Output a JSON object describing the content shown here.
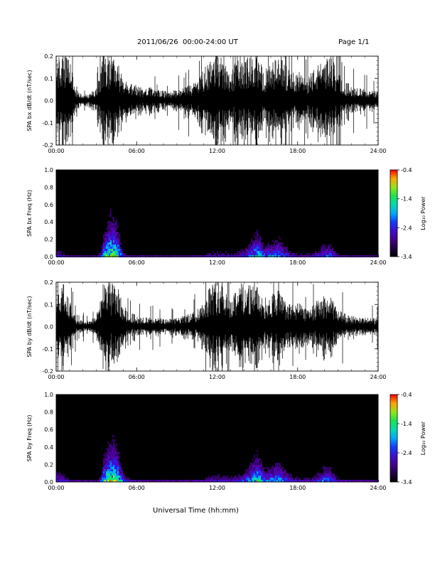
{
  "header": {
    "date_range": "2011/06/26  00:00-24:00 UT",
    "page": "Page 1/1"
  },
  "chart_data": [
    {
      "type": "line",
      "id": "panel1",
      "title": "",
      "xlabel": "",
      "ylabel": "SPA bx dB/dt (nT/sec)",
      "x_ticks": [
        "00:00",
        "06:00",
        "12:00",
        "18:00",
        "24:00"
      ],
      "y_ticks": [
        "-0.2",
        "-0.1",
        "0.0",
        "0.1",
        "0.2"
      ],
      "xlim": [
        0,
        24
      ],
      "ylim": [
        -0.2,
        0.2
      ],
      "x_unit": "hours UT",
      "series": [
        {
          "x": [
            0,
            0.5,
            1,
            1.5,
            2,
            2.5,
            3,
            3.5,
            4,
            4.5,
            5,
            5.5,
            6,
            6.5,
            7,
            7.5,
            8,
            8.5,
            9,
            9.5,
            10,
            10.5,
            11,
            11.5,
            12,
            12.5,
            13,
            13.5,
            14,
            14.5,
            15,
            15.5,
            16,
            16.5,
            17,
            17.5,
            18,
            18.5,
            19,
            19.5,
            20,
            20.5,
            21,
            21.5,
            22,
            22.5,
            23,
            23.5,
            24
          ],
          "envelope": [
            0.2,
            0.2,
            0.2,
            0.045,
            0.03,
            0.03,
            0.06,
            0.2,
            0.2,
            0.2,
            0.09,
            0.08,
            0.07,
            0.055,
            0.06,
            0.05,
            0.045,
            0.04,
            0.05,
            0.06,
            0.075,
            0.09,
            0.14,
            0.2,
            0.2,
            0.2,
            0.13,
            0.2,
            0.2,
            0.2,
            0.2,
            0.14,
            0.16,
            0.2,
            0.18,
            0.12,
            0.14,
            0.1,
            0.13,
            0.16,
            0.2,
            0.2,
            0.13,
            0.09,
            0.07,
            0.06,
            0.05,
            0.045,
            0.04
          ]
        }
      ]
    },
    {
      "type": "heatmap",
      "id": "panel2",
      "title": "",
      "xlabel": "",
      "ylabel": "SPA bx Freq (Hz)",
      "x_ticks": [
        "00:00",
        "06:00",
        "12:00",
        "18:00",
        "24:00"
      ],
      "y_ticks": [
        "0.0",
        "0.2",
        "0.4",
        "0.6",
        "0.8",
        "1.0"
      ],
      "xlim": [
        0,
        24
      ],
      "ylim": [
        0,
        1
      ],
      "colorbar_label": "Log₁₀ Power",
      "colorbar_ticks": [
        "-0.4",
        "-1.4",
        "-2.4",
        "-3.4"
      ],
      "colorbar_range": [
        -3.4,
        -0.4
      ],
      "activity_hours": [
        0,
        0.5,
        1,
        1.5,
        2,
        2.5,
        3,
        3.5,
        4,
        4.5,
        5,
        5.5,
        6,
        6.5,
        7,
        7.5,
        8,
        8.5,
        9,
        9.5,
        10,
        10.5,
        11,
        11.5,
        12,
        12.5,
        13,
        13.5,
        14,
        14.5,
        15,
        15.5,
        16,
        16.5,
        17,
        17.5,
        18,
        18.5,
        19,
        19.5,
        20,
        20.5,
        21,
        21.5,
        22,
        22.5,
        23,
        23.5,
        24
      ],
      "activity": [
        0.45,
        0.35,
        0.25,
        0.08,
        0.05,
        0.05,
        0.1,
        0.75,
        1.0,
        0.9,
        0.4,
        0.2,
        0.15,
        0.12,
        0.1,
        0.1,
        0.09,
        0.09,
        0.1,
        0.12,
        0.15,
        0.2,
        0.3,
        0.35,
        0.4,
        0.38,
        0.35,
        0.4,
        0.5,
        0.65,
        0.8,
        0.55,
        0.6,
        0.7,
        0.55,
        0.4,
        0.35,
        0.3,
        0.35,
        0.45,
        0.6,
        0.55,
        0.3,
        0.2,
        0.15,
        0.12,
        0.1,
        0.1,
        0.1
      ]
    },
    {
      "type": "line",
      "id": "panel3",
      "title": "",
      "xlabel": "",
      "ylabel": "SPA by dB/dt (nT/sec)",
      "x_ticks": [
        "00:00",
        "06:00",
        "12:00",
        "18:00",
        "24:00"
      ],
      "y_ticks": [
        "-0.2",
        "-0.1",
        "0.0",
        "0.1",
        "0.2"
      ],
      "xlim": [
        0,
        24
      ],
      "ylim": [
        -0.2,
        0.2
      ],
      "x_unit": "hours UT",
      "series": [
        {
          "x": [
            0,
            0.5,
            1,
            1.5,
            2,
            2.5,
            3,
            3.5,
            4,
            4.5,
            5,
            5.5,
            6,
            6.5,
            7,
            7.5,
            8,
            8.5,
            9,
            9.5,
            10,
            10.5,
            11,
            11.5,
            12,
            12.5,
            13,
            13.5,
            14,
            14.5,
            15,
            15.5,
            16,
            16.5,
            17,
            17.5,
            18,
            18.5,
            19,
            19.5,
            20,
            20.5,
            21,
            21.5,
            22,
            22.5,
            23,
            23.5,
            24
          ],
          "envelope": [
            0.2,
            0.2,
            0.12,
            0.035,
            0.03,
            0.03,
            0.05,
            0.2,
            0.2,
            0.2,
            0.1,
            0.07,
            0.05,
            0.045,
            0.04,
            0.04,
            0.035,
            0.035,
            0.04,
            0.05,
            0.06,
            0.08,
            0.12,
            0.2,
            0.2,
            0.2,
            0.12,
            0.2,
            0.2,
            0.2,
            0.18,
            0.13,
            0.14,
            0.18,
            0.12,
            0.1,
            0.11,
            0.09,
            0.1,
            0.12,
            0.14,
            0.13,
            0.08,
            0.06,
            0.05,
            0.045,
            0.04,
            0.04,
            0.04
          ]
        }
      ]
    },
    {
      "type": "heatmap",
      "id": "panel4",
      "title": "",
      "xlabel": "Universal Time (hh:mm)",
      "ylabel": "SPA by Freq (Hz)",
      "x_ticks": [
        "00:00",
        "06:00",
        "12:00",
        "18:00",
        "24:00"
      ],
      "y_ticks": [
        "0.0",
        "0.2",
        "0.4",
        "0.6",
        "0.8",
        "1.0"
      ],
      "xlim": [
        0,
        24
      ],
      "ylim": [
        0,
        1
      ],
      "colorbar_label": "Log₁₀ Power",
      "colorbar_ticks": [
        "-0.4",
        "-1.4",
        "-2.4",
        "-3.4"
      ],
      "colorbar_range": [
        -3.4,
        -0.4
      ],
      "activity_hours": [
        0,
        0.5,
        1,
        1.5,
        2,
        2.5,
        3,
        3.5,
        4,
        4.5,
        5,
        5.5,
        6,
        6.5,
        7,
        7.5,
        8,
        8.5,
        9,
        9.5,
        10,
        10.5,
        11,
        11.5,
        12,
        12.5,
        13,
        13.5,
        14,
        14.5,
        15,
        15.5,
        16,
        16.5,
        17,
        17.5,
        18,
        18.5,
        19,
        19.5,
        20,
        20.5,
        21,
        21.5,
        22,
        22.5,
        23,
        23.5,
        24
      ],
      "activity": [
        0.55,
        0.45,
        0.3,
        0.1,
        0.06,
        0.06,
        0.12,
        0.8,
        1.0,
        0.95,
        0.5,
        0.3,
        0.2,
        0.15,
        0.12,
        0.12,
        0.1,
        0.1,
        0.12,
        0.15,
        0.2,
        0.25,
        0.35,
        0.42,
        0.45,
        0.42,
        0.4,
        0.45,
        0.55,
        0.7,
        0.85,
        0.6,
        0.65,
        0.75,
        0.6,
        0.45,
        0.4,
        0.35,
        0.4,
        0.5,
        0.65,
        0.6,
        0.35,
        0.25,
        0.2,
        0.15,
        0.12,
        0.12,
        0.12
      ]
    }
  ]
}
